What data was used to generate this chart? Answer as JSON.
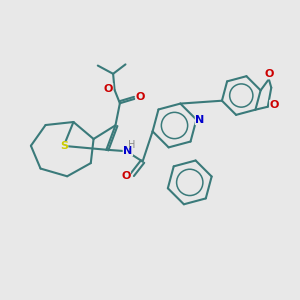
{
  "bg_color": "#e8e8e8",
  "bond_color": "#3a7a7a",
  "bond_width": 1.5,
  "S_color": "#cccc00",
  "N_color": "#0000cc",
  "O_color": "#cc0000",
  "H_color": "#888888",
  "figsize": [
    3.0,
    3.0
  ],
  "dpi": 100,
  "xlim": [
    0,
    10
  ],
  "ylim": [
    0,
    10
  ]
}
